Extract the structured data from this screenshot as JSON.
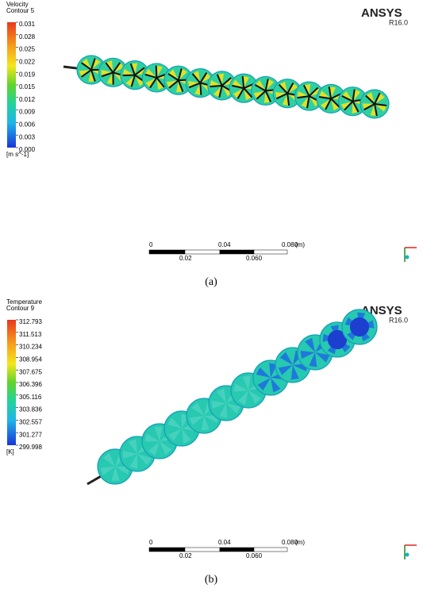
{
  "panels": [
    {
      "legend_title": "Velocity",
      "legend_subtitle": "Contour 5",
      "legend_labels": [
        "0.031",
        "0.028",
        "0.025",
        "0.022",
        "0.019",
        "0.015",
        "0.012",
        "0.009",
        "0.006",
        "0.003",
        "0.000"
      ],
      "unit": "[m s^-1]",
      "logo": "ANSYS",
      "version": "R16.0",
      "scale_top": [
        "0",
        "0.04",
        "0.080",
        "(m)"
      ],
      "scale_bottom": [
        "0.02",
        "0.060"
      ],
      "caption": "(a)"
    },
    {
      "legend_title": "Temperature",
      "legend_subtitle": "Contour 9",
      "legend_labels": [
        "312.793",
        "311.513",
        "310.234",
        "308.954",
        "307.675",
        "306.396",
        "305.116",
        "303.836",
        "302.557",
        "301.277",
        "299.998"
      ],
      "unit": "[K]",
      "logo": "ANSYS",
      "version": "R16.0",
      "scale_top": [
        "0",
        "0.04",
        "0.080",
        "(m)"
      ],
      "scale_bottom": [
        "0.02",
        "0.060"
      ],
      "caption": "(b)"
    }
  ]
}
